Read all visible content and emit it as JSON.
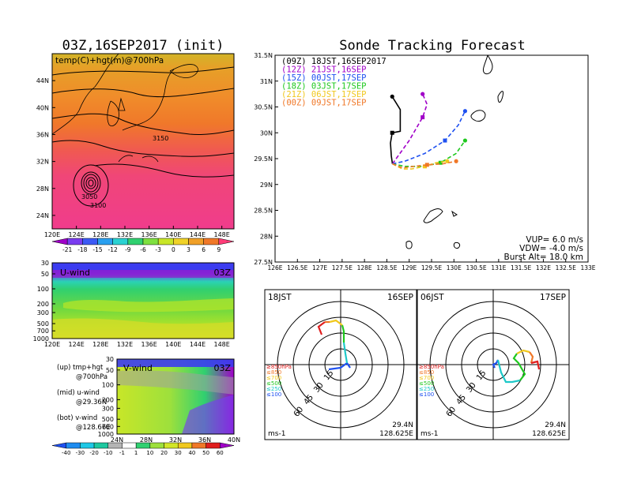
{
  "map_panel": {
    "title": "03Z,16SEP2017 (init)",
    "subtitle": "temp(C)+hgt(m)@700hPa",
    "lat_ticks": [
      "44N",
      "40N",
      "36N",
      "32N",
      "28N",
      "24N"
    ],
    "lon_ticks": [
      "120E",
      "124E",
      "128E",
      "132E",
      "136E",
      "140E",
      "144E",
      "148E"
    ],
    "contour_labels": [
      "3150",
      "3050",
      "3100"
    ],
    "colorbar": [
      "-21",
      "-18",
      "-15",
      "-12",
      "-9",
      "-6",
      "-3",
      "0",
      "3",
      "6",
      "9"
    ],
    "colorbar_colors": [
      "#a000c8",
      "#7a3cf0",
      "#3c5af5",
      "#2aa0f0",
      "#2ad2d2",
      "#30d070",
      "#7ee040",
      "#c8e628",
      "#f0d228",
      "#f0a028",
      "#f07828",
      "#ff3c78"
    ]
  },
  "uwind_panel": {
    "title": "U-wind",
    "time": "03Z",
    "p_ticks": [
      "30",
      "50",
      "100",
      "200",
      "300",
      "500",
      "700",
      "1000"
    ],
    "lon_ticks": [
      "120E",
      "124E",
      "128E",
      "132E",
      "136E",
      "140E",
      "144E",
      "148E"
    ]
  },
  "vwind_panel": {
    "title": "V-wind",
    "time": "03Z",
    "p_ticks": [
      "30",
      "50",
      "100",
      "200",
      "300",
      "500",
      "700",
      "1000"
    ],
    "lat_ticks": [
      "24N",
      "28N",
      "32N",
      "36N",
      "40N"
    ],
    "colorbar": [
      "-40",
      "-30",
      "-20",
      "-10",
      "-1",
      "1",
      "10",
      "20",
      "30",
      "40",
      "50",
      "60"
    ]
  },
  "notes": {
    "up_1": "(up) tmp+hgt",
    "up_2": "@700hPa",
    "mid_1": "(mid) u-wind",
    "mid_2": "@29.36N",
    "bot_1": "(bot) v-wind",
    "bot_2": "@128.66E"
  },
  "track_panel": {
    "title": "Sonde Tracking Forecast",
    "lat_ticks": [
      "31.5N",
      "31N",
      "30.5N",
      "30N",
      "29.5N",
      "29N",
      "28.5N",
      "28N",
      "27.5N"
    ],
    "lon_ticks": [
      "126E",
      "126.5E",
      "127E",
      "127.5E",
      "128E",
      "128.5E",
      "129E",
      "129.5E",
      "130E",
      "130.5E",
      "131E",
      "131.5E",
      "132E",
      "132.5E",
      "133E"
    ],
    "legend": [
      {
        "label": "(09Z)  18JST,16SEP2017",
        "color": "#000000"
      },
      {
        "label": "(12Z)  21JST,16SEP",
        "color": "#a000c8"
      },
      {
        "label": "(15Z)  00JST,17SEP",
        "color": "#1e50f0"
      },
      {
        "label": "(18Z)  03JST,17SEP",
        "color": "#1ec81e"
      },
      {
        "label": "(21Z)  06JST,17SEP",
        "color": "#f0c81e"
      },
      {
        "label": "(00Z)  09JST,17SEP",
        "color": "#f07828"
      }
    ],
    "info_1": "VUP=  6.0  m/s",
    "info_2": "VDW= -4.0  m/s",
    "info_3": "Burst Alt=  18.0  km"
  },
  "hodo_left": {
    "time": "18JST",
    "date": "16SEP",
    "rings": [
      "15",
      "30",
      "45",
      "60"
    ],
    "levels": [
      "≥850hPa",
      "≤850",
      "≤700",
      "≤500",
      "≤250",
      "≤100"
    ],
    "level_colors": [
      "#e01e1e",
      "#f07828",
      "#f0c81e",
      "#1ec81e",
      "#1ec8c8",
      "#1e50f0"
    ],
    "unit": "ms-1",
    "lat": "29.4N",
    "lon": "128.625E"
  },
  "hodo_right": {
    "time": "06JST",
    "date": "17SEP",
    "rings": [
      "15",
      "30",
      "45",
      "60"
    ],
    "levels": [
      "≥850hPa",
      "≤850",
      "≤700",
      "≤500",
      "≤250",
      "≤100"
    ],
    "level_colors": [
      "#e01e1e",
      "#f07828",
      "#f0c81e",
      "#1ec81e",
      "#1ec8c8",
      "#1e50f0"
    ],
    "unit": "ms-1",
    "lat": "29.4N",
    "lon": "128.625E"
  },
  "chart_data": [
    {
      "type": "heatmap",
      "title": "03Z,16SEP2017 (init)",
      "subtitle": "temp(C)+hgt(m)@700hPa",
      "xlim": [
        120,
        150
      ],
      "ylim": [
        22,
        48
      ],
      "colorbar_levels": [
        -21,
        -18,
        -15,
        -12,
        -9,
        -6,
        -3,
        0,
        3,
        6,
        9
      ]
    },
    {
      "type": "line",
      "title": "Sonde Tracking Forecast",
      "xlim": [
        126,
        133
      ],
      "ylim": [
        27.5,
        31.5
      ],
      "series": [
        {
          "name": "(09Z)  18JST,16SEP2017",
          "x": [
            128.625,
            128.6,
            128.58,
            128.62,
            128.8,
            128.8,
            128.62
          ],
          "y": [
            29.4,
            29.55,
            29.8,
            30.0,
            30.03,
            30.45,
            30.7
          ]
        },
        {
          "name": "(12Z)  21JST,16SEP",
          "x": [
            128.625,
            128.75,
            129.0,
            129.3,
            129.4,
            129.3
          ],
          "y": [
            29.4,
            29.55,
            29.85,
            30.3,
            30.55,
            30.75
          ]
        },
        {
          "name": "(15Z)  00JST,17SEP",
          "x": [
            128.625,
            128.9,
            129.35,
            129.8,
            130.1,
            130.25
          ],
          "y": [
            29.4,
            29.45,
            29.6,
            29.85,
            30.15,
            30.42
          ]
        },
        {
          "name": "(18Z)  03JST,17SEP",
          "x": [
            128.625,
            128.9,
            129.3,
            129.7,
            130.05,
            130.25
          ],
          "y": [
            29.4,
            29.35,
            29.35,
            29.42,
            29.6,
            29.85
          ]
        },
        {
          "name": "(21Z)  06JST,17SEP",
          "x": [
            128.625,
            128.85,
            129.05,
            129.35,
            129.6,
            129.85
          ],
          "y": [
            29.4,
            29.3,
            29.3,
            29.35,
            29.42,
            29.45
          ]
        },
        {
          "name": "(00Z)  09JST,17SEP",
          "x": [
            128.625,
            128.85,
            129.1,
            129.4,
            129.75,
            130.05
          ],
          "y": [
            29.4,
            29.32,
            29.35,
            29.38,
            29.4,
            29.45
          ]
        }
      ],
      "info": [
        "VUP=  6.0  m/s",
        "VDW= -4.0  m/s",
        "Burst Alt=  18.0  km"
      ]
    }
  ]
}
